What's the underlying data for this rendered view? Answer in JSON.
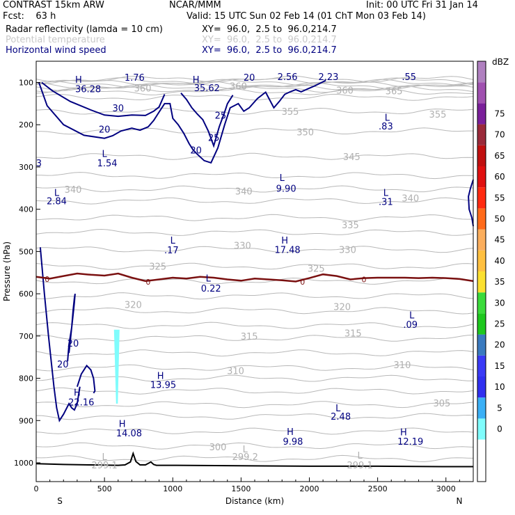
{
  "header": {
    "title_left": "CONTRAST 15km ARW",
    "title_mid": "NCAR/MMM",
    "init": "Init: 00 UTC Fri 31 Jan 14",
    "fcst": "Fcst:    63 h",
    "valid": "Valid: 15 UTC Sun 02 Feb 14 (01 ChT Mon 03 Feb 14)",
    "fields": [
      {
        "name": "Radar reflectivity (lamda = 10 cm)",
        "xy": "XY=  96.0,  2.5 to  96.0,214.7",
        "color": "#000000"
      },
      {
        "name": "Potential temperature",
        "xy": "XY=  96.0,  2.5 to  96.0,214.7",
        "color": "#c8c8c8"
      },
      {
        "name": "Horizontal wind speed",
        "xy": "XY=  96.0,  2.5 to  96.0,214.7",
        "color": "#000080"
      }
    ]
  },
  "chart_data": {
    "type": "cross-section contour",
    "xlabel": "Distance (km)",
    "ylabel": "Pressure (hPa)",
    "xlim": [
      0,
      3200
    ],
    "ylim": [
      1050,
      70
    ],
    "xticks": [
      "0",
      "500",
      "1000",
      "1500",
      "2000",
      "2500",
      "3000"
    ],
    "xtick_values": [
      0,
      500,
      1000,
      1500,
      2000,
      2500,
      3000
    ],
    "yticks": [
      "100",
      "200",
      "300",
      "400",
      "500",
      "600",
      "700",
      "800",
      "900",
      "1000"
    ],
    "ytick_values": [
      100,
      200,
      300,
      400,
      500,
      600,
      700,
      800,
      900,
      1000
    ],
    "endpoints": {
      "left": "S",
      "right": "N"
    },
    "colorbar": {
      "title": "dBZ",
      "labels": [
        "0",
        "5",
        "10",
        "15",
        "20",
        "25",
        "30",
        "35",
        "40",
        "45",
        "50",
        "55",
        "60",
        "65",
        "70",
        "75"
      ],
      "colors": [
        "#ffffff",
        "#ffffff",
        "#7ffcfc",
        "#3bb0f6",
        "#3030f0",
        "#3a3af6",
        "#3a7abf",
        "#1ec81e",
        "#3bdb3b",
        "#fbe030",
        "#ffc040",
        "#fbae5d",
        "#ff6a1a",
        "#ff2a10",
        "#e01010",
        "#c01010",
        "#9a2a3a",
        "#7a1f9a",
        "#a050b0",
        "#b080c0"
      ]
    },
    "theta_labels": [
      {
        "text": "365",
        "x": 2620,
        "p": 120
      },
      {
        "text": "360",
        "x": 780,
        "p": 113
      },
      {
        "text": "360",
        "x": 1480,
        "p": 108
      },
      {
        "text": "360",
        "x": 2260,
        "p": 118
      },
      {
        "text": "355",
        "x": 1860,
        "p": 168
      },
      {
        "text": "355",
        "x": 2940,
        "p": 175
      },
      {
        "text": "350",
        "x": 1970,
        "p": 217
      },
      {
        "text": "345",
        "x": 2310,
        "p": 275
      },
      {
        "text": "340",
        "x": 270,
        "p": 353
      },
      {
        "text": "340",
        "x": 1520,
        "p": 357
      },
      {
        "text": "340",
        "x": 2740,
        "p": 373
      },
      {
        "text": "335",
        "x": 2300,
        "p": 437
      },
      {
        "text": "330",
        "x": 1510,
        "p": 485
      },
      {
        "text": "330",
        "x": 2280,
        "p": 495
      },
      {
        "text": "325",
        "x": 890,
        "p": 535
      },
      {
        "text": "325",
        "x": 2050,
        "p": 540
      },
      {
        "text": "320",
        "x": 710,
        "p": 625
      },
      {
        "text": "320",
        "x": 2240,
        "p": 630
      },
      {
        "text": "315",
        "x": 1560,
        "p": 700
      },
      {
        "text": "315",
        "x": 2320,
        "p": 693
      },
      {
        "text": "310",
        "x": 1460,
        "p": 782
      },
      {
        "text": "310",
        "x": 2680,
        "p": 768
      },
      {
        "text": "305",
        "x": 2970,
        "p": 858
      },
      {
        "text": "300",
        "x": 1330,
        "p": 962
      },
      {
        "text": "L",
        "x": 1530,
        "p": 967
      },
      {
        "text": "299.2",
        "x": 1530,
        "p": 985
      },
      {
        "text": "L",
        "x": 2370,
        "p": 982
      },
      {
        "text": "299.1",
        "x": 2370,
        "p": 1005
      },
      {
        "text": "L",
        "x": 500,
        "p": 985
      },
      {
        "text": "299.1",
        "x": 500,
        "p": 1005
      }
    ],
    "wind_labels": [
      {
        "text": "H",
        "x": 310,
        "p": 93
      },
      {
        "text": "36.28",
        "x": 380,
        "p": 115
      },
      {
        "text": "1.76",
        "x": 720,
        "p": 88
      },
      {
        "text": "H",
        "x": 1170,
        "p": 93
      },
      {
        "text": "35.62",
        "x": 1250,
        "p": 112
      },
      {
        "text": "20",
        "x": 1560,
        "p": 88
      },
      {
        "text": "2.56",
        "x": 1840,
        "p": 86
      },
      {
        "text": "2.23",
        "x": 2140,
        "p": 86
      },
      {
        "text": ".55",
        "x": 2730,
        "p": 86
      },
      {
        "text": "30",
        "x": 600,
        "p": 160
      },
      {
        "text": "25",
        "x": 1350,
        "p": 177
      },
      {
        "text": "L",
        "x": 2570,
        "p": 182
      },
      {
        "text": ".83",
        "x": 2560,
        "p": 203
      },
      {
        "text": "20",
        "x": 500,
        "p": 210
      },
      {
        "text": "25",
        "x": 1300,
        "p": 230
      },
      {
        "text": "20",
        "x": 1170,
        "p": 260
      },
      {
        "text": "L",
        "x": 500,
        "p": 268
      },
      {
        "text": "1.54",
        "x": 520,
        "p": 290
      },
      {
        "text": "3",
        "x": 20,
        "p": 290
      },
      {
        "text": "L",
        "x": 1800,
        "p": 325
      },
      {
        "text": "9.90",
        "x": 1830,
        "p": 350
      },
      {
        "text": "L",
        "x": 150,
        "p": 360
      },
      {
        "text": "2.84",
        "x": 150,
        "p": 380
      },
      {
        "text": "L",
        "x": 2560,
        "p": 360
      },
      {
        "text": ".31",
        "x": 2560,
        "p": 382
      },
      {
        "text": "L",
        "x": 1000,
        "p": 473
      },
      {
        "text": ".17",
        "x": 990,
        "p": 496
      },
      {
        "text": "H",
        "x": 1820,
        "p": 473
      },
      {
        "text": "17.48",
        "x": 1840,
        "p": 495
      },
      {
        "text": "L",
        "x": 1260,
        "p": 563
      },
      {
        "text": "0.22",
        "x": 1280,
        "p": 587
      },
      {
        "text": "L",
        "x": 2750,
        "p": 650
      },
      {
        "text": ".09",
        "x": 2740,
        "p": 672
      },
      {
        "text": "20",
        "x": 270,
        "p": 717
      },
      {
        "text": "20",
        "x": 195,
        "p": 766
      },
      {
        "text": "H",
        "x": 910,
        "p": 793
      },
      {
        "text": "13.95",
        "x": 930,
        "p": 815
      },
      {
        "text": "H",
        "x": 300,
        "p": 833
      },
      {
        "text": "22.16",
        "x": 330,
        "p": 856
      },
      {
        "text": "L",
        "x": 2210,
        "p": 870
      },
      {
        "text": "2.48",
        "x": 2230,
        "p": 890
      },
      {
        "text": "H",
        "x": 630,
        "p": 907
      },
      {
        "text": "14.08",
        "x": 680,
        "p": 929
      },
      {
        "text": "H",
        "x": 1860,
        "p": 926
      },
      {
        "text": "9.98",
        "x": 1880,
        "p": 949
      },
      {
        "text": "H",
        "x": 2690,
        "p": 927
      },
      {
        "text": "12.19",
        "x": 2740,
        "p": 949
      }
    ],
    "zero_labels": [
      {
        "text": "0",
        "x": 80,
        "p": 565
      },
      {
        "text": "0",
        "x": 820,
        "p": 572
      },
      {
        "text": "0",
        "x": 1950,
        "p": 572
      },
      {
        "text": "0",
        "x": 2400,
        "p": 566
      }
    ],
    "zero_dbz_contour": {
      "x": [
        0,
        100,
        200,
        300,
        400,
        500,
        600,
        700,
        800,
        900,
        1000,
        1100,
        1200,
        1300,
        1400,
        1500,
        1600,
        1700,
        1800,
        1900,
        2000,
        2100,
        2200,
        2300,
        2400,
        2500,
        2600,
        2700,
        2800,
        2900,
        3000,
        3100,
        3200
      ],
      "p": [
        560,
        564,
        558,
        552,
        555,
        557,
        552,
        562,
        570,
        566,
        562,
        564,
        560,
        562,
        566,
        569,
        564,
        566,
        568,
        571,
        563,
        554,
        558,
        566,
        563,
        562,
        562,
        562,
        563,
        562,
        563,
        565,
        570
      ]
    },
    "terrain": {
      "x": [
        0,
        200,
        400,
        600,
        650,
        690,
        710,
        730,
        760,
        800,
        840,
        860,
        880,
        1000,
        1500,
        2000,
        2500,
        3000,
        3200
      ],
      "p": [
        1002,
        1004,
        1005,
        1006,
        1005,
        998,
        978,
        997,
        1005,
        1005,
        998,
        1004,
        1006,
        1006,
        1007,
        1008,
        1008,
        1009,
        1009
      ]
    },
    "reflectivity_echo": {
      "x_center": 590,
      "p_top": 685,
      "p_bottom": 860,
      "dbz": 10
    },
    "wind_contours": [
      {
        "level": 20,
        "x": [
          20,
          80,
          200,
          350,
          500,
          560,
          620,
          700,
          760,
          820,
          860,
          900,
          940,
          980,
          1000,
          1040,
          1080,
          1120,
          1150,
          1180,
          1230,
          1280,
          1330,
          1380,
          1420,
          1480,
          1520,
          1560,
          1620,
          1680,
          1740,
          1780,
          1820,
          1860,
          1900,
          1940,
          1990,
          2040,
          2090,
          2120
        ],
        "p": [
          100,
          155,
          200,
          225,
          232,
          226,
          215,
          208,
          213,
          205,
          190,
          170,
          150,
          150,
          185,
          200,
          220,
          245,
          260,
          270,
          285,
          290,
          255,
          200,
          160,
          150,
          168,
          160,
          138,
          123,
          160,
          145,
          128,
          122,
          117,
          122,
          115,
          108,
          100,
          95
        ]
      },
      {
        "level": 30,
        "x": [
          40,
          120,
          250,
          400,
          500,
          600,
          700,
          800,
          860,
          900,
          940
        ],
        "p": [
          100,
          120,
          145,
          165,
          177,
          180,
          177,
          178,
          168,
          158,
          128
        ]
      },
      {
        "level": 25,
        "x": [
          1060,
          1100,
          1140,
          1180,
          1220,
          1260,
          1300,
          1340,
          1380,
          1400,
          1440
        ],
        "p": [
          125,
          140,
          160,
          175,
          188,
          215,
          250,
          205,
          170,
          150,
          130
        ]
      },
      {
        "level": 20,
        "x": [
          30,
          60,
          90,
          110,
          130,
          150,
          170,
          200,
          240,
          260,
          280,
          300,
          320
        ],
        "p": [
          490,
          600,
          700,
          760,
          820,
          870,
          900,
          885,
          860,
          870,
          875,
          860,
          820
        ]
      },
      {
        "level": 20,
        "x": [
          230,
          240,
          250,
          260,
          270,
          280,
          285,
          280,
          270,
          260,
          250,
          240
        ],
        "p": [
          760,
          720,
          700,
          680,
          650,
          620,
          600,
          610,
          640,
          680,
          710,
          740
        ]
      },
      {
        "level": 20,
        "x": [
          300,
          330,
          350,
          370,
          400,
          420,
          430,
          420
        ],
        "p": [
          820,
          790,
          780,
          770,
          780,
          800,
          830,
          835
        ]
      },
      {
        "level": 20,
        "x": [
          3200,
          3180,
          3165,
          3170,
          3190,
          3200
        ],
        "p": [
          330,
          350,
          370,
          400,
          420,
          440
        ]
      }
    ]
  }
}
